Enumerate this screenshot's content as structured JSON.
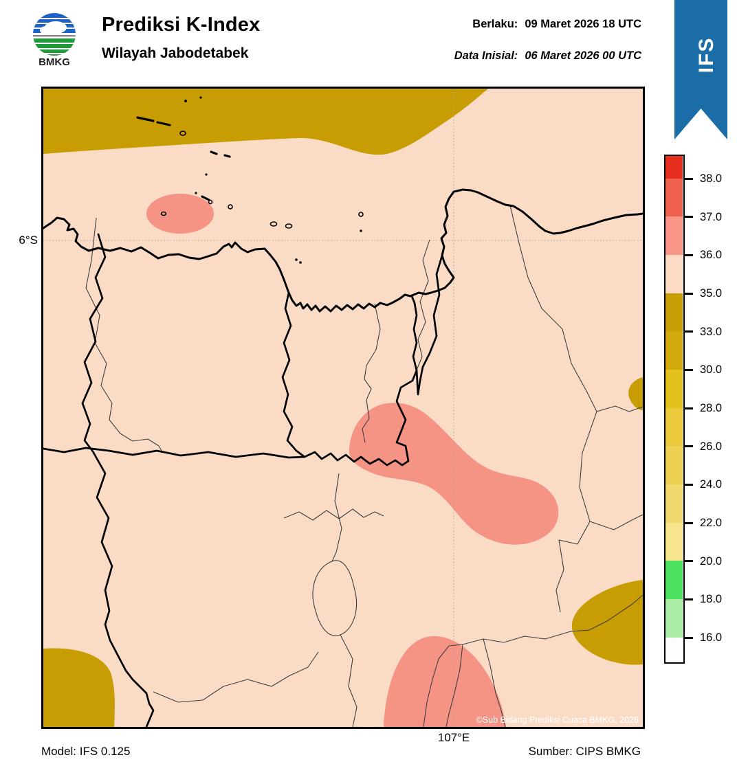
{
  "header": {
    "logo_text": "BMKG",
    "title": "Prediksi K-Index",
    "subtitle": "Wilayah Jabodetabek",
    "valid_label": "Berlaku:",
    "valid_value": "09 Maret 2026 18 UTC",
    "init_label": "Data Inisial:",
    "init_value": "06 Maret 2026 00 UTC",
    "ribbon_label": "IFS"
  },
  "axes": {
    "lat_label": "6°S",
    "lon_label": "107°E"
  },
  "map": {
    "copyright": "©Sub Bidang Prediksi Cuaca BMKG, 2026"
  },
  "footer": {
    "model": "Model: IFS 0.125",
    "source": "Sumber: CIPS BMKG"
  },
  "colorbar": {
    "tick_labels": [
      "38.0",
      "37.0",
      "36.0",
      "35.0",
      "33.0",
      "30.0",
      "28.0",
      "26.0",
      "24.0",
      "22.0",
      "20.0",
      "18.0",
      "16.0"
    ],
    "segment_colors_top_to_bottom": [
      "#e62e1e",
      "#f0614e",
      "#f99586",
      "#fcdcc4",
      "#c89e04",
      "#d2a90d",
      "#e2c01d",
      "#eac93b",
      "#eed052",
      "#f1d96e",
      "#f6e58d",
      "#4de25f",
      "#a9eda6",
      "#fdfdfd"
    ]
  },
  "colors": {
    "map_background_pink": "#fadcc6",
    "shade_salmon": "#f59384",
    "shade_olive": "#c79d03",
    "ribbon_blue": "#1b6da8",
    "logo_blue": "#2063c6",
    "logo_green": "#1f9b3c",
    "grid_dotted": "#b3a396"
  }
}
